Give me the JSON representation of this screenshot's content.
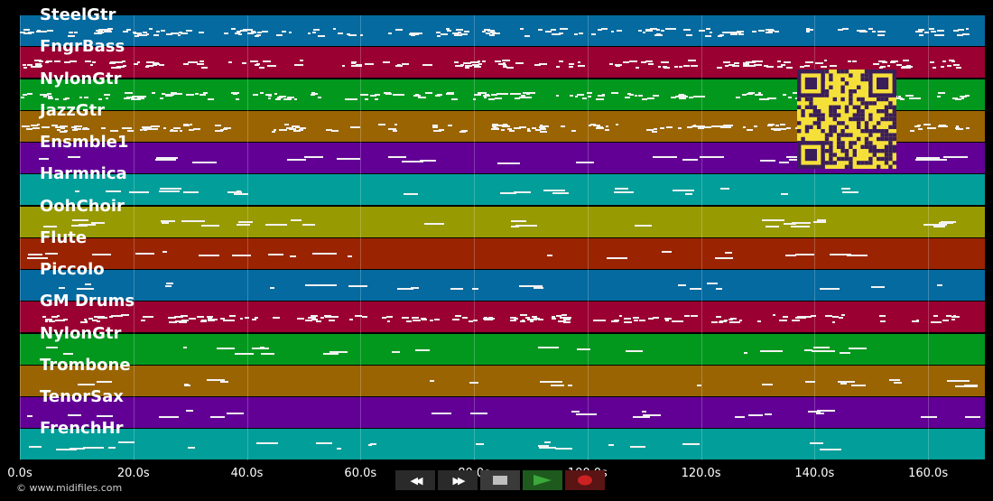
{
  "tracks": [
    {
      "label": "SteelGtr",
      "color": "#046aa0",
      "style": "dense"
    },
    {
      "label": "FngrBass",
      "color": "#9a0032",
      "style": "dense"
    },
    {
      "label": "NylonGtr",
      "color": "#02981e",
      "style": "dense"
    },
    {
      "label": "JazzGtr",
      "color": "#9a6402",
      "style": "dense"
    },
    {
      "label": "Ensmble1",
      "color": "#620096",
      "style": "blocks"
    },
    {
      "label": "Harmnica",
      "color": "#029e9a",
      "style": "sparse"
    },
    {
      "label": "OohChoir",
      "color": "#989a02",
      "style": "blocks"
    },
    {
      "label": "Flute",
      "color": "#9a2402",
      "style": "sparse"
    },
    {
      "label": "Piccolo",
      "color": "#046aa0",
      "style": "sparse"
    },
    {
      "label": "GM Drums",
      "color": "#9a0032",
      "style": "dense"
    },
    {
      "label": "NylonGtr",
      "color": "#02981e",
      "style": "sparse"
    },
    {
      "label": "Trombone",
      "color": "#9a6402",
      "style": "sparse"
    },
    {
      "label": "TenorSax",
      "color": "#620096",
      "style": "sparse"
    },
    {
      "label": "FrenchHr",
      "color": "#029e9a",
      "style": "sparse"
    }
  ],
  "time_axis": {
    "ticks": [
      "0.0s",
      "20.0s",
      "40.0s",
      "60.0s",
      "80.0s",
      "100.0s",
      "120.0s",
      "140.0s",
      "160.0s"
    ],
    "tick_values": [
      0,
      20,
      40,
      60,
      80,
      100,
      120,
      140,
      160
    ],
    "max_seconds": 170
  },
  "copyright": "© www.midifiles.com",
  "transport": {
    "rewind": "◀◀",
    "fast_forward": "▶▶",
    "stop_color": "#bfbfbf",
    "play_color": "#3aa83a",
    "record_color": "#cc2222"
  },
  "qr": {
    "color": "#f5e03a",
    "dark": "#3a1e5a"
  }
}
